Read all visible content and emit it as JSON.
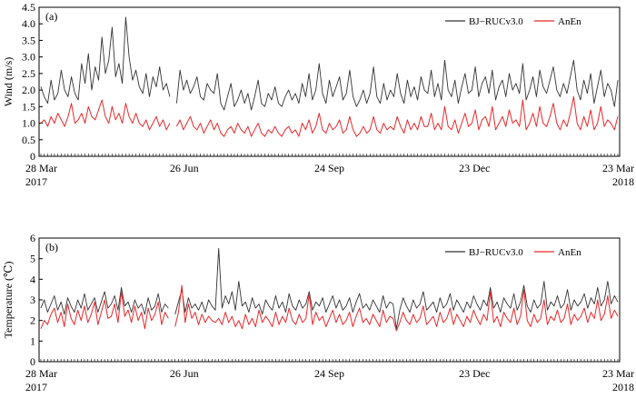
{
  "chart_data": [
    {
      "type": "line",
      "panel_label": "(a)",
      "ylabel": "Wind (m/s)",
      "ylim": [
        0,
        4.5
      ],
      "yticks": [
        "0",
        "0.5",
        "1.0",
        "1.5",
        "2.0",
        "2.5",
        "3.0",
        "3.5",
        "4.0",
        "4.5"
      ],
      "xticks": [
        {
          "label": "28  Mar",
          "year": "2017"
        },
        {
          "label": "26  Jun",
          "year": ""
        },
        {
          "label": "24 Sep",
          "year": ""
        },
        {
          "label": "23  Dec",
          "year": ""
        },
        {
          "label": "23  Mar",
          "year": "2018"
        }
      ],
      "legend": "top-right",
      "series": [
        {
          "name": "BJ−RUCv3.0",
          "color": "#333333",
          "values": [
            2.1,
            1.8,
            1.6,
            2.3,
            1.7,
            1.9,
            2.6,
            2.0,
            1.8,
            2.4,
            1.9,
            1.7,
            2.8,
            2.2,
            3.1,
            2.0,
            2.7,
            2.3,
            3.6,
            2.5,
            2.9,
            3.9,
            2.4,
            2.8,
            2.2,
            4.2,
            3.0,
            2.3,
            2.6,
            2.1,
            1.9,
            2.5,
            1.8,
            2.4,
            2.1,
            2.7,
            2.0,
            2.2,
            1.8,
            null,
            1.6,
            2.6,
            2.0,
            2.3,
            1.9,
            2.1,
            2.4,
            1.8,
            1.7,
            2.2,
            2.0,
            1.9,
            2.5,
            1.6,
            1.4,
            1.8,
            2.2,
            1.5,
            1.7,
            2.0,
            1.6,
            1.9,
            1.4,
            1.8,
            2.3,
            1.6,
            1.5,
            1.9,
            1.7,
            2.1,
            1.6,
            1.5,
            1.8,
            2.0,
            1.7,
            1.9,
            1.6,
            2.2,
            1.8,
            2.5,
            1.7,
            2.0,
            2.8,
            1.9,
            1.6,
            2.3,
            1.8,
            2.1,
            2.4,
            1.7,
            1.9,
            2.6,
            1.8,
            1.5,
            1.7,
            2.0,
            1.6,
            1.9,
            2.7,
            1.8,
            1.6,
            2.2,
            1.7,
            2.0,
            1.8,
            2.5,
            1.9,
            1.6,
            2.3,
            1.8,
            2.1,
            1.7,
            2.4,
            2.0,
            1.9,
            2.6,
            1.8,
            2.2,
            1.7,
            2.9,
            2.0,
            1.8,
            2.3,
            1.6,
            2.1,
            2.5,
            1.9,
            2.0,
            2.7,
            1.8,
            2.2,
            2.4,
            1.9,
            2.6,
            1.7,
            2.1,
            2.3,
            1.8,
            2.5,
            2.0,
            2.2,
            1.9,
            2.8,
            1.7,
            2.0,
            2.4,
            1.8,
            2.6,
            2.1,
            1.9,
            2.3,
            2.7,
            2.0,
            1.8,
            2.2,
            1.9,
            2.4,
            2.9,
            2.0,
            1.7,
            2.3,
            1.9,
            2.5,
            1.6,
            2.1,
            2.6,
            1.8,
            2.2,
            2.0,
            1.5,
            2.3
          ]
        },
        {
          "name": "AnEn",
          "color": "#e8282b",
          "values": [
            1.0,
            1.1,
            0.9,
            1.2,
            1.0,
            1.3,
            1.1,
            0.9,
            1.2,
            1.6,
            1.0,
            1.1,
            1.3,
            1.0,
            1.5,
            1.2,
            1.1,
            1.4,
            1.7,
            1.2,
            1.0,
            1.5,
            1.1,
            1.3,
            1.0,
            1.6,
            1.2,
            1.0,
            1.3,
            1.0,
            0.9,
            1.1,
            0.8,
            1.0,
            1.2,
            0.9,
            1.1,
            0.8,
            1.0,
            null,
            0.9,
            1.1,
            0.8,
            1.0,
            1.2,
            0.9,
            0.8,
            1.0,
            0.7,
            0.9,
            1.1,
            0.8,
            1.0,
            0.7,
            0.6,
            0.8,
            0.9,
            0.7,
            1.0,
            0.8,
            0.7,
            0.9,
            0.6,
            0.8,
            1.0,
            0.7,
            0.6,
            0.8,
            0.7,
            0.9,
            0.7,
            0.6,
            0.8,
            0.9,
            0.7,
            0.8,
            0.6,
            1.0,
            0.8,
            1.1,
            0.7,
            0.9,
            1.3,
            0.8,
            0.7,
            1.0,
            0.8,
            0.9,
            1.1,
            0.7,
            0.8,
            1.2,
            0.8,
            0.6,
            0.7,
            0.9,
            0.7,
            0.8,
            1.2,
            0.8,
            0.7,
            1.0,
            0.8,
            0.9,
            0.8,
            1.2,
            0.9,
            0.7,
            1.1,
            0.8,
            1.0,
            0.8,
            1.2,
            0.9,
            0.9,
            1.3,
            0.8,
            1.0,
            0.8,
            1.5,
            0.9,
            0.8,
            1.1,
            0.7,
            1.0,
            1.3,
            0.9,
            1.0,
            1.4,
            0.8,
            1.1,
            1.2,
            0.9,
            1.5,
            0.8,
            1.0,
            1.2,
            0.9,
            1.4,
            1.0,
            1.1,
            0.9,
            1.7,
            0.8,
            1.0,
            1.3,
            0.9,
            1.5,
            1.0,
            0.9,
            1.2,
            1.6,
            1.0,
            0.8,
            1.1,
            0.9,
            1.3,
            1.8,
            1.0,
            0.8,
            1.2,
            0.9,
            1.4,
            0.8,
            1.0,
            1.5,
            0.9,
            1.1,
            1.0,
            0.8,
            1.2
          ]
        }
      ]
    },
    {
      "type": "line",
      "panel_label": "(b)",
      "ylabel": "Temperature (℃)",
      "ylim": [
        0,
        6
      ],
      "yticks": [
        "0",
        "1",
        "2",
        "3",
        "4",
        "5",
        "6"
      ],
      "xticks": [
        {
          "label": "28  Mar",
          "year": "2017"
        },
        {
          "label": "26  Jun",
          "year": ""
        },
        {
          "label": "24 Sep",
          "year": ""
        },
        {
          "label": "23  Dec",
          "year": ""
        },
        {
          "label": "23  Mar",
          "year": "2018"
        }
      ],
      "legend": "top-right",
      "series": [
        {
          "name": "BJ−RUCv3.0",
          "color": "#333333",
          "values": [
            2.6,
            3.0,
            2.4,
            2.8,
            3.2,
            2.5,
            2.9,
            2.3,
            3.1,
            2.7,
            2.4,
            3.0,
            2.6,
            3.3,
            2.5,
            2.8,
            3.1,
            2.4,
            2.9,
            3.4,
            2.6,
            2.8,
            3.2,
            2.5,
            3.6,
            2.7,
            2.9,
            2.4,
            3.0,
            2.6,
            2.8,
            2.3,
            3.1,
            2.5,
            2.7,
            3.3,
            2.4,
            2.8,
            2.6,
            null,
            2.3,
            2.9,
            3.5,
            2.4,
            3.1,
            2.6,
            2.8,
            2.5,
            2.9,
            2.4,
            3.0,
            2.7,
            2.5,
            5.5,
            2.6,
            3.2,
            2.8,
            3.4,
            2.5,
            3.9,
            2.7,
            2.9,
            2.4,
            3.1,
            2.6,
            2.8,
            2.3,
            3.0,
            2.7,
            2.5,
            3.2,
            2.6,
            2.9,
            2.4,
            3.3,
            2.7,
            2.5,
            3.0,
            2.6,
            2.8,
            3.4,
            2.5,
            2.9,
            2.7,
            3.1,
            2.4,
            2.8,
            3.2,
            2.6,
            3.0,
            2.5,
            2.7,
            3.1,
            2.4,
            2.9,
            3.3,
            2.6,
            2.8,
            2.5,
            3.0,
            2.7,
            2.4,
            3.2,
            2.6,
            2.9,
            2.8,
            1.6,
            2.5,
            3.1,
            2.7,
            2.4,
            3.0,
            2.6,
            2.8,
            3.4,
            2.5,
            2.7,
            2.9,
            2.4,
            3.1,
            2.6,
            2.8,
            3.3,
            2.5,
            3.0,
            2.7,
            2.4,
            2.9,
            2.6,
            3.2,
            2.8,
            2.5,
            3.0,
            2.7,
            3.6,
            2.6,
            2.9,
            2.4,
            3.1,
            2.8,
            2.6,
            3.3,
            2.5,
            2.9,
            3.7,
            2.7,
            2.4,
            3.0,
            2.6,
            2.8,
            3.9,
            2.5,
            2.9,
            2.7,
            3.2,
            2.6,
            2.8,
            3.5,
            2.5,
            3.0,
            2.7,
            2.9,
            3.3,
            2.6,
            3.1,
            2.8,
            3.6,
            2.7,
            3.0,
            3.9,
            2.8,
            3.2,
            2.9
          ]
        },
        {
          "name": "AnEn",
          "color": "#e8282b",
          "values": [
            1.6,
            2.0,
            1.8,
            2.3,
            2.6,
            1.9,
            2.4,
            1.7,
            2.8,
            2.1,
            1.8,
            2.5,
            2.0,
            2.7,
            1.9,
            2.3,
            2.9,
            1.8,
            2.4,
            3.0,
            2.1,
            2.2,
            2.8,
            1.9,
            3.4,
            2.2,
            2.5,
            1.9,
            2.7,
            2.0,
            2.4,
            1.6,
            2.6,
            2.0,
            2.3,
            2.9,
            1.8,
            2.4,
            2.1,
            null,
            1.7,
            2.4,
            3.7,
            1.9,
            2.8,
            2.1,
            2.4,
            1.8,
            2.3,
            1.9,
            2.2,
            2.0,
            1.9,
            2.1,
            1.8,
            2.4,
            1.9,
            2.2,
            1.7,
            2.0,
            1.6,
            2.3,
            1.8,
            2.1,
            1.7,
            2.5,
            1.9,
            2.2,
            2.0,
            1.7,
            2.4,
            1.8,
            2.2,
            1.9,
            2.6,
            2.0,
            1.8,
            2.3,
            1.9,
            2.1,
            3.3,
            1.8,
            2.4,
            2.0,
            2.2,
            1.7,
            2.1,
            2.5,
            1.9,
            2.3,
            1.8,
            2.0,
            2.4,
            1.7,
            2.2,
            2.6,
            1.9,
            2.1,
            1.8,
            2.3,
            2.0,
            1.7,
            2.5,
            1.9,
            2.2,
            2.1,
            1.5,
            1.9,
            2.4,
            2.0,
            1.8,
            2.3,
            1.9,
            2.1,
            2.7,
            1.8,
            2.0,
            2.2,
            1.7,
            2.4,
            1.9,
            2.1,
            2.6,
            1.8,
            2.3,
            2.0,
            1.7,
            2.2,
            1.9,
            2.5,
            2.1,
            1.8,
            2.3,
            2.0,
            3.4,
            1.9,
            2.2,
            1.7,
            2.4,
            2.1,
            1.9,
            2.6,
            1.8,
            2.2,
            3.5,
            2.0,
            1.7,
            2.3,
            1.9,
            2.1,
            3.0,
            1.8,
            2.2,
            2.0,
            2.5,
            1.9,
            2.1,
            2.8,
            1.8,
            2.3,
            2.0,
            2.2,
            2.6,
            1.9,
            2.4,
            2.1,
            3.0,
            2.0,
            2.3,
            3.2,
            2.1,
            2.5,
            2.2
          ]
        }
      ]
    }
  ]
}
